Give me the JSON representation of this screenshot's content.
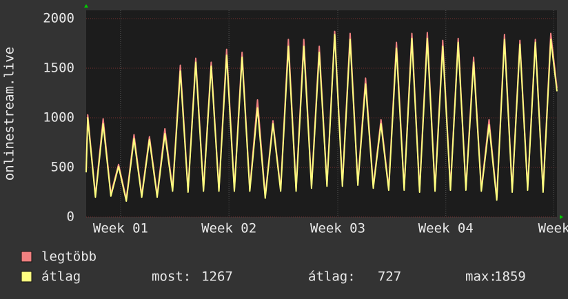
{
  "chart_data": {
    "type": "line",
    "y_label": "onlinestream.live",
    "xlim": [
      0,
      30.5
    ],
    "xticks": [
      {
        "value": 2.23,
        "label": "Week 01"
      },
      {
        "value": 9.25,
        "label": "Week 02"
      },
      {
        "value": 16.3,
        "label": "Week 03"
      },
      {
        "value": 23.3,
        "label": "Week 04"
      },
      {
        "value": 30.3,
        "label": "Week"
      }
    ],
    "ylim": [
      0,
      2083
    ],
    "yticks": [
      0,
      500,
      1000,
      1500,
      2000
    ],
    "grid": true,
    "x": [
      0,
      0.1,
      0.6,
      1.1,
      1.6,
      2.1,
      2.6,
      3.1,
      3.6,
      4.1,
      4.6,
      5.1,
      5.6,
      6.1,
      6.6,
      7.1,
      7.6,
      8.1,
      8.6,
      9.1,
      9.6,
      10.1,
      10.6,
      11.1,
      11.6,
      12.1,
      12.6,
      13.1,
      13.6,
      14.1,
      14.6,
      15.1,
      15.6,
      16.1,
      16.6,
      17.1,
      17.6,
      18.1,
      18.6,
      19.1,
      19.6,
      20.1,
      20.6,
      21.1,
      21.6,
      22.1,
      22.6,
      23.1,
      23.6,
      24.1,
      24.6,
      25.1,
      25.6,
      26.1,
      26.6,
      27.1,
      27.6,
      28.1,
      28.6,
      29.1,
      29.6,
      30.1,
      30.5
    ],
    "series": [
      {
        "name": "legtöbb",
        "color": "#f08080",
        "values": [
          470,
          1030,
          220,
          990,
          230,
          530,
          180,
          830,
          220,
          810,
          220,
          890,
          280,
          1530,
          270,
          1600,
          280,
          1560,
          280,
          1690,
          280,
          1660,
          280,
          1180,
          210,
          970,
          280,
          1790,
          280,
          1790,
          310,
          1720,
          330,
          1870,
          330,
          1850,
          340,
          1400,
          310,
          980,
          290,
          1760,
          290,
          1850,
          270,
          1860,
          280,
          1780,
          290,
          1800,
          290,
          1610,
          280,
          980,
          190,
          1840,
          270,
          1780,
          290,
          1790,
          270,
          1850,
          1300
        ]
      },
      {
        "name": "átlag",
        "color": "#ffff80",
        "values": [
          450,
          1000,
          200,
          940,
          210,
          510,
          160,
          790,
          200,
          780,
          200,
          840,
          260,
          1470,
          250,
          1560,
          260,
          1520,
          260,
          1630,
          260,
          1610,
          260,
          1100,
          190,
          940,
          260,
          1720,
          260,
          1720,
          290,
          1660,
          310,
          1840,
          310,
          1790,
          320,
          1340,
          290,
          940,
          270,
          1700,
          270,
          1800,
          250,
          1800,
          260,
          1720,
          270,
          1760,
          270,
          1560,
          260,
          930,
          170,
          1790,
          250,
          1740,
          270,
          1760,
          250,
          1790,
          1267
        ]
      }
    ],
    "stats": [
      {
        "label": "most:",
        "value": 1267
      },
      {
        "label": "átlag:",
        "value": 727
      },
      {
        "label": "max:",
        "value": 1859
      }
    ]
  }
}
